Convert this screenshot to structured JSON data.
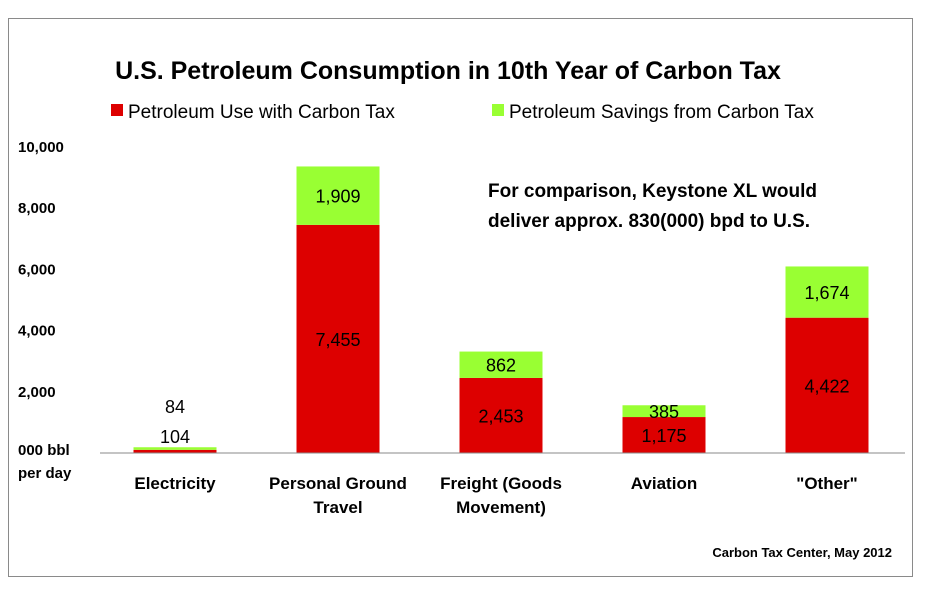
{
  "chart_data": {
    "type": "bar",
    "stacked": true,
    "title": "U.S. Petroleum Consumption in 10th Year of Carbon Tax",
    "ylabel": "000 bbl per day",
    "ylabel_lines": [
      "000 bbl",
      "per day"
    ],
    "ylim": [
      0,
      10000
    ],
    "yticks": [
      2000,
      4000,
      6000,
      8000,
      10000
    ],
    "ytick_labels": [
      "2,000",
      "4,000",
      "6,000",
      "8,000",
      "10,000"
    ],
    "categories": [
      "Electricity",
      "Personal Ground Travel",
      "Freight (Goods Movement)",
      "Aviation",
      "\"Other\""
    ],
    "category_lines": [
      [
        "Electricity"
      ],
      [
        "Personal Ground",
        "Travel"
      ],
      [
        "Freight (Goods",
        "Movement)"
      ],
      [
        "Aviation"
      ],
      [
        "\"Other\""
      ]
    ],
    "series": [
      {
        "name": "Petroleum Use with Carbon Tax",
        "color": "#dd0000",
        "values": [
          104,
          7455,
          2453,
          1175,
          4422
        ],
        "labels": [
          "104",
          "7,455",
          "2,453",
          "1,175",
          "4,422"
        ]
      },
      {
        "name": "Petroleum Savings from Carbon Tax",
        "color": "#99ff33",
        "values": [
          84,
          1909,
          862,
          385,
          1674
        ],
        "labels": [
          "84",
          "1,909",
          "862",
          "385",
          "1,674"
        ]
      }
    ],
    "legend_position": "top",
    "grid": false,
    "annotation_lines": [
      "For comparison, Keystone XL would",
      "deliver approx. 830(000) bpd to U.S."
    ],
    "source": "Carbon Tax Center, May 2012"
  }
}
